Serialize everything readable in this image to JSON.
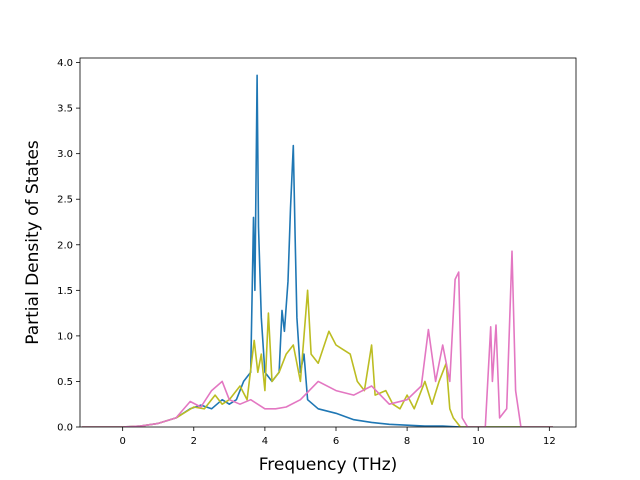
{
  "chart_data": {
    "type": "line",
    "title": "",
    "xlabel": "Frequency (THz)",
    "ylabel": "Partial Density of States",
    "xlim": [
      -1.2,
      12.75
    ],
    "ylim": [
      0,
      4.05
    ],
    "xticks": [
      0,
      2,
      4,
      6,
      8,
      10,
      12
    ],
    "yticks": [
      0.0,
      0.5,
      1.0,
      1.5,
      2.0,
      2.5,
      3.0,
      3.5,
      4.0
    ],
    "xtick_labels": [
      "0",
      "2",
      "4",
      "6",
      "8",
      "10",
      "12"
    ],
    "ytick_labels": [
      "0.0",
      "0.5",
      "1.0",
      "1.5",
      "2.0",
      "2.5",
      "3.0",
      "3.5",
      "4.0"
    ],
    "grid": false,
    "legend": "none",
    "series": [
      {
        "color": "#1f77b4",
        "points": [
          [
            -1.15,
            0
          ],
          [
            0,
            0
          ],
          [
            0.5,
            0.01
          ],
          [
            1.0,
            0.04
          ],
          [
            1.5,
            0.1
          ],
          [
            1.9,
            0.2
          ],
          [
            2.2,
            0.24
          ],
          [
            2.5,
            0.2
          ],
          [
            2.8,
            0.3
          ],
          [
            3.0,
            0.25
          ],
          [
            3.2,
            0.3
          ],
          [
            3.4,
            0.5
          ],
          [
            3.5,
            0.55
          ],
          [
            3.6,
            0.6
          ],
          [
            3.68,
            2.3
          ],
          [
            3.72,
            1.5
          ],
          [
            3.78,
            3.86
          ],
          [
            3.82,
            2.2
          ],
          [
            3.9,
            1.2
          ],
          [
            4.0,
            0.6
          ],
          [
            4.2,
            0.5
          ],
          [
            4.4,
            0.6
          ],
          [
            4.48,
            1.28
          ],
          [
            4.55,
            1.05
          ],
          [
            4.65,
            1.6
          ],
          [
            4.72,
            2.4
          ],
          [
            4.8,
            3.09
          ],
          [
            4.85,
            2.1
          ],
          [
            4.9,
            1.2
          ],
          [
            5.0,
            0.6
          ],
          [
            5.1,
            0.8
          ],
          [
            5.2,
            0.3
          ],
          [
            5.5,
            0.2
          ],
          [
            6.0,
            0.15
          ],
          [
            6.5,
            0.08
          ],
          [
            7.0,
            0.05
          ],
          [
            7.5,
            0.03
          ],
          [
            8.0,
            0.02
          ],
          [
            8.5,
            0.01
          ],
          [
            9.0,
            0.01
          ],
          [
            9.5,
            0.0
          ],
          [
            12.1,
            0
          ]
        ]
      },
      {
        "color": "#bcbd22",
        "points": [
          [
            -1.15,
            0
          ],
          [
            0,
            0
          ],
          [
            0.5,
            0.01
          ],
          [
            1.0,
            0.04
          ],
          [
            1.5,
            0.1
          ],
          [
            2.0,
            0.22
          ],
          [
            2.3,
            0.2
          ],
          [
            2.6,
            0.35
          ],
          [
            2.8,
            0.25
          ],
          [
            3.0,
            0.3
          ],
          [
            3.3,
            0.45
          ],
          [
            3.5,
            0.3
          ],
          [
            3.7,
            0.95
          ],
          [
            3.8,
            0.6
          ],
          [
            3.9,
            0.8
          ],
          [
            4.0,
            0.4
          ],
          [
            4.1,
            1.25
          ],
          [
            4.2,
            0.5
          ],
          [
            4.4,
            0.6
          ],
          [
            4.6,
            0.8
          ],
          [
            4.8,
            0.9
          ],
          [
            5.0,
            0.5
          ],
          [
            5.1,
            1.0
          ],
          [
            5.2,
            1.5
          ],
          [
            5.3,
            0.8
          ],
          [
            5.5,
            0.7
          ],
          [
            5.8,
            1.05
          ],
          [
            6.0,
            0.9
          ],
          [
            6.2,
            0.85
          ],
          [
            6.4,
            0.8
          ],
          [
            6.6,
            0.5
          ],
          [
            6.8,
            0.4
          ],
          [
            7.0,
            0.9
          ],
          [
            7.1,
            0.35
          ],
          [
            7.4,
            0.4
          ],
          [
            7.6,
            0.25
          ],
          [
            7.8,
            0.2
          ],
          [
            8.0,
            0.35
          ],
          [
            8.2,
            0.2
          ],
          [
            8.5,
            0.5
          ],
          [
            8.7,
            0.25
          ],
          [
            8.9,
            0.5
          ],
          [
            9.1,
            0.7
          ],
          [
            9.2,
            0.2
          ],
          [
            9.3,
            0.1
          ],
          [
            9.5,
            0.0
          ],
          [
            12.1,
            0
          ]
        ]
      },
      {
        "color": "#e377c2",
        "points": [
          [
            -1.15,
            0
          ],
          [
            0,
            0
          ],
          [
            0.5,
            0.01
          ],
          [
            1.0,
            0.04
          ],
          [
            1.5,
            0.1
          ],
          [
            1.9,
            0.28
          ],
          [
            2.2,
            0.22
          ],
          [
            2.5,
            0.4
          ],
          [
            2.8,
            0.5
          ],
          [
            3.0,
            0.3
          ],
          [
            3.3,
            0.25
          ],
          [
            3.6,
            0.3
          ],
          [
            4.0,
            0.2
          ],
          [
            4.3,
            0.2
          ],
          [
            4.6,
            0.22
          ],
          [
            5.0,
            0.3
          ],
          [
            5.5,
            0.5
          ],
          [
            6.0,
            0.4
          ],
          [
            6.5,
            0.35
          ],
          [
            7.0,
            0.45
          ],
          [
            7.5,
            0.25
          ],
          [
            8.0,
            0.3
          ],
          [
            8.4,
            0.45
          ],
          [
            8.6,
            1.07
          ],
          [
            8.8,
            0.5
          ],
          [
            9.0,
            0.9
          ],
          [
            9.2,
            0.5
          ],
          [
            9.35,
            1.62
          ],
          [
            9.45,
            1.7
          ],
          [
            9.55,
            0.1
          ],
          [
            9.7,
            0.0
          ],
          [
            10.2,
            0.0
          ],
          [
            10.35,
            1.1
          ],
          [
            10.4,
            0.5
          ],
          [
            10.5,
            1.12
          ],
          [
            10.6,
            0.1
          ],
          [
            10.8,
            0.2
          ],
          [
            10.95,
            1.93
          ],
          [
            11.05,
            0.4
          ],
          [
            11.2,
            0.0
          ],
          [
            12.1,
            0
          ]
        ]
      }
    ]
  }
}
